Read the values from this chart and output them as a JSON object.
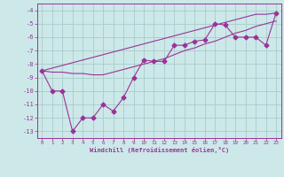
{
  "xlabel": "Windchill (Refroidissement éolien,°C)",
  "x": [
    0,
    1,
    2,
    3,
    4,
    5,
    6,
    7,
    8,
    9,
    10,
    11,
    12,
    13,
    14,
    15,
    16,
    17,
    18,
    19,
    20,
    21,
    22,
    23
  ],
  "y_main": [
    -8.5,
    -10.0,
    -10.0,
    -13.0,
    -12.0,
    -12.0,
    -11.0,
    -11.5,
    -10.5,
    -9.0,
    -7.7,
    -7.8,
    -7.8,
    -6.6,
    -6.6,
    -6.3,
    -6.2,
    -5.0,
    -5.1,
    -6.0,
    -6.0,
    -6.0,
    -6.6,
    -4.2
  ],
  "y_line1": [
    -8.5,
    -8.3,
    -8.1,
    -7.9,
    -7.7,
    -7.5,
    -7.3,
    -7.1,
    -6.9,
    -6.7,
    -6.5,
    -6.3,
    -6.1,
    -5.9,
    -5.7,
    -5.5,
    -5.3,
    -5.1,
    -4.9,
    -4.7,
    -4.5,
    -4.3,
    -4.3,
    -4.2
  ],
  "y_line2": [
    -8.5,
    -8.6,
    -8.6,
    -8.7,
    -8.7,
    -8.8,
    -8.8,
    -8.6,
    -8.4,
    -8.2,
    -8.0,
    -7.8,
    -7.6,
    -7.3,
    -7.0,
    -6.8,
    -6.5,
    -6.3,
    -6.0,
    -5.7,
    -5.5,
    -5.2,
    -5.0,
    -4.8
  ],
  "bg_color": "#cce8e8",
  "grid_color": "#aacccc",
  "line_color": "#993399",
  "marker": "D",
  "marker_size": 2.5,
  "xlim": [
    -0.5,
    23.5
  ],
  "ylim": [
    -13.5,
    -3.5
  ],
  "yticks": [
    -13,
    -12,
    -11,
    -10,
    -9,
    -8,
    -7,
    -6,
    -5,
    -4
  ],
  "xticks": [
    0,
    1,
    2,
    3,
    4,
    5,
    6,
    7,
    8,
    9,
    10,
    11,
    12,
    13,
    14,
    15,
    16,
    17,
    18,
    19,
    20,
    21,
    22,
    23
  ]
}
